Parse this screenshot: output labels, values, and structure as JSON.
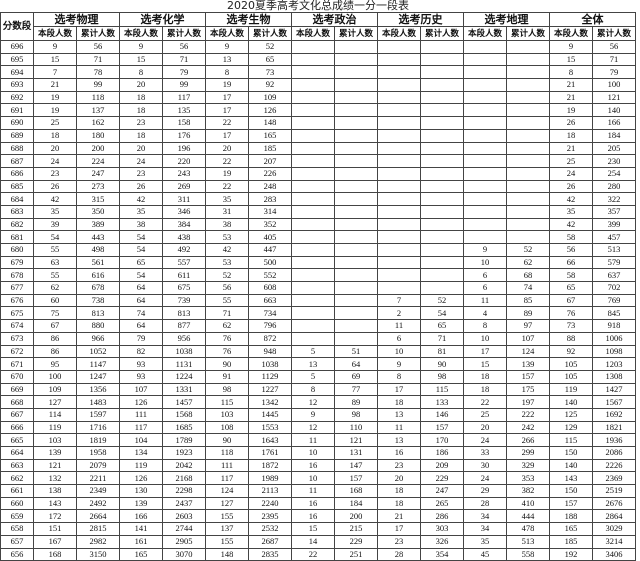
{
  "title": "2020夏季高考文化总成绩一分一段表",
  "header": {
    "score_label": "分数段",
    "groups": [
      "选考物理",
      "选考化学",
      "选考生物",
      "选考政治",
      "选考历史",
      "选考地理",
      "全体"
    ],
    "sub": [
      "本段人数",
      "累计人数"
    ]
  },
  "table": {
    "rows": [
      [
        "696",
        "9",
        "56",
        "9",
        "56",
        "9",
        "52",
        "",
        "",
        "",
        "",
        "",
        "",
        "9",
        "56"
      ],
      [
        "695",
        "15",
        "71",
        "15",
        "71",
        "13",
        "65",
        "",
        "",
        "",
        "",
        "",
        "",
        "15",
        "71"
      ],
      [
        "694",
        "7",
        "78",
        "8",
        "79",
        "8",
        "73",
        "",
        "",
        "",
        "",
        "",
        "",
        "8",
        "79"
      ],
      [
        "693",
        "21",
        "99",
        "20",
        "99",
        "19",
        "92",
        "",
        "",
        "",
        "",
        "",
        "",
        "21",
        "100"
      ],
      [
        "692",
        "19",
        "118",
        "18",
        "117",
        "17",
        "109",
        "",
        "",
        "",
        "",
        "",
        "",
        "21",
        "121"
      ],
      [
        "691",
        "19",
        "137",
        "18",
        "135",
        "17",
        "126",
        "",
        "",
        "",
        "",
        "",
        "",
        "19",
        "140"
      ],
      [
        "690",
        "25",
        "162",
        "23",
        "158",
        "22",
        "148",
        "",
        "",
        "",
        "",
        "",
        "",
        "26",
        "166"
      ],
      [
        "689",
        "18",
        "180",
        "18",
        "176",
        "17",
        "165",
        "",
        "",
        "",
        "",
        "",
        "",
        "18",
        "184"
      ],
      [
        "688",
        "20",
        "200",
        "20",
        "196",
        "20",
        "185",
        "",
        "",
        "",
        "",
        "",
        "",
        "21",
        "205"
      ],
      [
        "687",
        "24",
        "224",
        "24",
        "220",
        "22",
        "207",
        "",
        "",
        "",
        "",
        "",
        "",
        "25",
        "230"
      ],
      [
        "686",
        "23",
        "247",
        "23",
        "243",
        "19",
        "226",
        "",
        "",
        "",
        "",
        "",
        "",
        "24",
        "254"
      ],
      [
        "685",
        "26",
        "273",
        "26",
        "269",
        "22",
        "248",
        "",
        "",
        "",
        "",
        "",
        "",
        "26",
        "280"
      ],
      [
        "684",
        "42",
        "315",
        "42",
        "311",
        "35",
        "283",
        "",
        "",
        "",
        "",
        "",
        "",
        "42",
        "322"
      ],
      [
        "683",
        "35",
        "350",
        "35",
        "346",
        "31",
        "314",
        "",
        "",
        "",
        "",
        "",
        "",
        "35",
        "357"
      ],
      [
        "682",
        "39",
        "389",
        "38",
        "384",
        "38",
        "352",
        "",
        "",
        "",
        "",
        "",
        "",
        "42",
        "399"
      ],
      [
        "681",
        "54",
        "443",
        "54",
        "438",
        "53",
        "405",
        "",
        "",
        "",
        "",
        "",
        "",
        "58",
        "457"
      ],
      [
        "680",
        "55",
        "498",
        "54",
        "492",
        "42",
        "447",
        "",
        "",
        "",
        "",
        "9",
        "52",
        "56",
        "513"
      ],
      [
        "679",
        "63",
        "561",
        "65",
        "557",
        "53",
        "500",
        "",
        "",
        "",
        "",
        "10",
        "62",
        "66",
        "579"
      ],
      [
        "678",
        "55",
        "616",
        "54",
        "611",
        "52",
        "552",
        "",
        "",
        "",
        "",
        "6",
        "68",
        "58",
        "637"
      ],
      [
        "677",
        "62",
        "678",
        "64",
        "675",
        "56",
        "608",
        "",
        "",
        "",
        "",
        "6",
        "74",
        "65",
        "702"
      ],
      [
        "676",
        "60",
        "738",
        "64",
        "739",
        "55",
        "663",
        "",
        "",
        "7",
        "52",
        "11",
        "85",
        "67",
        "769"
      ],
      [
        "675",
        "75",
        "813",
        "74",
        "813",
        "71",
        "734",
        "",
        "",
        "2",
        "54",
        "4",
        "89",
        "76",
        "845"
      ],
      [
        "674",
        "67",
        "880",
        "64",
        "877",
        "62",
        "796",
        "",
        "",
        "11",
        "65",
        "8",
        "97",
        "73",
        "918"
      ],
      [
        "673",
        "86",
        "966",
        "79",
        "956",
        "76",
        "872",
        "",
        "",
        "6",
        "71",
        "10",
        "107",
        "88",
        "1006"
      ],
      [
        "672",
        "86",
        "1052",
        "82",
        "1038",
        "76",
        "948",
        "5",
        "51",
        "10",
        "81",
        "17",
        "124",
        "92",
        "1098"
      ],
      [
        "671",
        "95",
        "1147",
        "93",
        "1131",
        "90",
        "1038",
        "13",
        "64",
        "9",
        "90",
        "15",
        "139",
        "105",
        "1203"
      ],
      [
        "670",
        "100",
        "1247",
        "93",
        "1224",
        "91",
        "1129",
        "5",
        "69",
        "8",
        "98",
        "18",
        "157",
        "105",
        "1308"
      ],
      [
        "669",
        "109",
        "1356",
        "107",
        "1331",
        "98",
        "1227",
        "8",
        "77",
        "17",
        "115",
        "18",
        "175",
        "119",
        "1427"
      ],
      [
        "668",
        "127",
        "1483",
        "126",
        "1457",
        "115",
        "1342",
        "12",
        "89",
        "18",
        "133",
        "22",
        "197",
        "140",
        "1567"
      ],
      [
        "667",
        "114",
        "1597",
        "111",
        "1568",
        "103",
        "1445",
        "9",
        "98",
        "13",
        "146",
        "25",
        "222",
        "125",
        "1692"
      ],
      [
        "666",
        "119",
        "1716",
        "117",
        "1685",
        "108",
        "1553",
        "12",
        "110",
        "11",
        "157",
        "20",
        "242",
        "129",
        "1821"
      ],
      [
        "665",
        "103",
        "1819",
        "104",
        "1789",
        "90",
        "1643",
        "11",
        "121",
        "13",
        "170",
        "24",
        "266",
        "115",
        "1936"
      ],
      [
        "664",
        "139",
        "1958",
        "134",
        "1923",
        "118",
        "1761",
        "10",
        "131",
        "16",
        "186",
        "33",
        "299",
        "150",
        "2086"
      ],
      [
        "663",
        "121",
        "2079",
        "119",
        "2042",
        "111",
        "1872",
        "16",
        "147",
        "23",
        "209",
        "30",
        "329",
        "140",
        "2226"
      ],
      [
        "662",
        "132",
        "2211",
        "126",
        "2168",
        "117",
        "1989",
        "10",
        "157",
        "20",
        "229",
        "24",
        "353",
        "143",
        "2369"
      ],
      [
        "661",
        "138",
        "2349",
        "130",
        "2298",
        "124",
        "2113",
        "11",
        "168",
        "18",
        "247",
        "29",
        "382",
        "150",
        "2519"
      ],
      [
        "660",
        "143",
        "2492",
        "139",
        "2437",
        "127",
        "2240",
        "16",
        "184",
        "18",
        "265",
        "28",
        "410",
        "157",
        "2676"
      ],
      [
        "659",
        "172",
        "2664",
        "166",
        "2603",
        "155",
        "2395",
        "16",
        "200",
        "21",
        "286",
        "34",
        "444",
        "188",
        "2864"
      ],
      [
        "658",
        "151",
        "2815",
        "141",
        "2744",
        "137",
        "2532",
        "15",
        "215",
        "17",
        "303",
        "34",
        "478",
        "165",
        "3029"
      ],
      [
        "657",
        "167",
        "2982",
        "161",
        "2905",
        "155",
        "2687",
        "14",
        "229",
        "23",
        "326",
        "35",
        "513",
        "185",
        "3214"
      ],
      [
        "656",
        "168",
        "3150",
        "165",
        "3070",
        "148",
        "2835",
        "22",
        "251",
        "28",
        "354",
        "45",
        "558",
        "192",
        "3406"
      ]
    ]
  }
}
